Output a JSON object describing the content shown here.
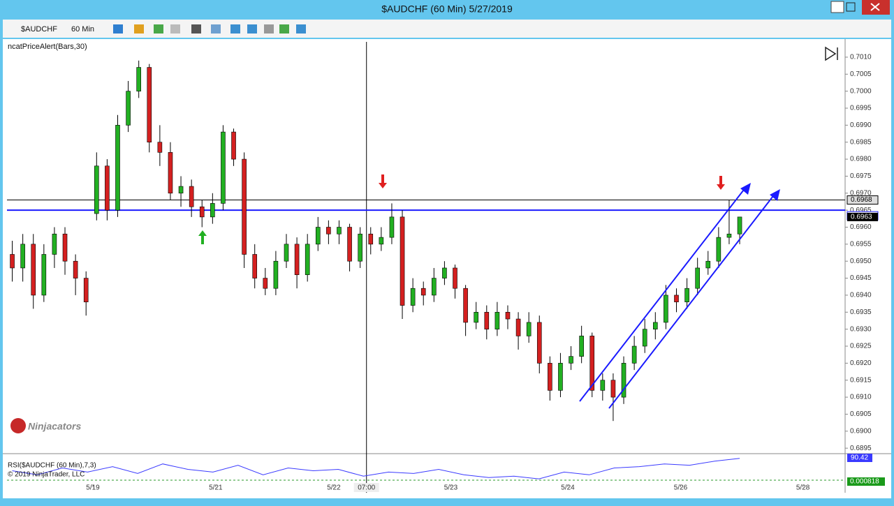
{
  "window": {
    "title": "$AUDCHF (60 Min)  5/27/2019"
  },
  "toolbar": {
    "instrument": "$AUDCHF",
    "interval": "60 Min"
  },
  "chart_data": {
    "type": "candlestick",
    "indicator_label": "ncatPriceAlert(Bars,30)",
    "logo": "Ninjacators",
    "up_color": "#22b022",
    "down_color": "#d42020",
    "ohlc": [
      [
        0.6952,
        0.6956,
        0.6944,
        0.6948
      ],
      [
        0.6948,
        0.6958,
        0.6944,
        0.6955
      ],
      [
        0.6955,
        0.6958,
        0.6936,
        0.694
      ],
      [
        0.694,
        0.6955,
        0.6938,
        0.6952
      ],
      [
        0.6952,
        0.696,
        0.6948,
        0.6958
      ],
      [
        0.6958,
        0.696,
        0.6946,
        0.695
      ],
      [
        0.695,
        0.6952,
        0.694,
        0.6945
      ],
      [
        0.6945,
        0.6947,
        0.6934,
        0.6938
      ],
      [
        0.6964,
        0.6982,
        0.6962,
        0.6978
      ],
      [
        0.6978,
        0.698,
        0.6962,
        0.6965
      ],
      [
        0.6965,
        0.6993,
        0.6963,
        0.699
      ],
      [
        0.699,
        0.7003,
        0.6988,
        0.7
      ],
      [
        0.7,
        0.7009,
        0.6998,
        0.7007
      ],
      [
        0.7007,
        0.7008,
        0.6982,
        0.6985
      ],
      [
        0.6985,
        0.699,
        0.6978,
        0.6982
      ],
      [
        0.6982,
        0.6985,
        0.6968,
        0.697
      ],
      [
        0.697,
        0.6975,
        0.6966,
        0.6972
      ],
      [
        0.6972,
        0.6974,
        0.6963,
        0.6966
      ],
      [
        0.6966,
        0.6968,
        0.696,
        0.6963
      ],
      [
        0.6963,
        0.697,
        0.6961,
        0.6967
      ],
      [
        0.6967,
        0.699,
        0.6965,
        0.6988
      ],
      [
        0.6988,
        0.6989,
        0.6978,
        0.698
      ],
      [
        0.698,
        0.6982,
        0.6948,
        0.6952
      ],
      [
        0.6952,
        0.6955,
        0.6942,
        0.6945
      ],
      [
        0.6945,
        0.6948,
        0.694,
        0.6942
      ],
      [
        0.6942,
        0.6953,
        0.694,
        0.695
      ],
      [
        0.695,
        0.6958,
        0.6948,
        0.6955
      ],
      [
        0.6955,
        0.6957,
        0.6942,
        0.6946
      ],
      [
        0.6946,
        0.6958,
        0.6944,
        0.6955
      ],
      [
        0.6955,
        0.6963,
        0.6953,
        0.696
      ],
      [
        0.696,
        0.6962,
        0.6955,
        0.6958
      ],
      [
        0.6958,
        0.6962,
        0.6955,
        0.696
      ],
      [
        0.696,
        0.6961,
        0.6947,
        0.695
      ],
      [
        0.695,
        0.696,
        0.6948,
        0.6958
      ],
      [
        0.6958,
        0.696,
        0.6952,
        0.6955
      ],
      [
        0.6955,
        0.696,
        0.6953,
        0.6957
      ],
      [
        0.6957,
        0.6967,
        0.6955,
        0.6963
      ],
      [
        0.6963,
        0.6965,
        0.6933,
        0.6937
      ],
      [
        0.6937,
        0.6945,
        0.6935,
        0.6942
      ],
      [
        0.6942,
        0.6944,
        0.6937,
        0.694
      ],
      [
        0.694,
        0.6948,
        0.6938,
        0.6945
      ],
      [
        0.6945,
        0.695,
        0.6943,
        0.6948
      ],
      [
        0.6948,
        0.6949,
        0.6939,
        0.6942
      ],
      [
        0.6942,
        0.6943,
        0.6928,
        0.6932
      ],
      [
        0.6932,
        0.6938,
        0.693,
        0.6935
      ],
      [
        0.6935,
        0.6937,
        0.6927,
        0.693
      ],
      [
        0.693,
        0.6938,
        0.6928,
        0.6935
      ],
      [
        0.6935,
        0.6937,
        0.693,
        0.6933
      ],
      [
        0.6933,
        0.6935,
        0.6924,
        0.6928
      ],
      [
        0.6928,
        0.6935,
        0.6926,
        0.6932
      ],
      [
        0.6932,
        0.6934,
        0.6917,
        0.692
      ],
      [
        0.692,
        0.6922,
        0.6909,
        0.6912
      ],
      [
        0.6912,
        0.6923,
        0.691,
        0.692
      ],
      [
        0.692,
        0.6925,
        0.6918,
        0.6922
      ],
      [
        0.6922,
        0.6931,
        0.692,
        0.6928
      ],
      [
        0.6928,
        0.6929,
        0.691,
        0.6912
      ],
      [
        0.6912,
        0.6917,
        0.6909,
        0.6915
      ],
      [
        0.6915,
        0.6917,
        0.6903,
        0.691
      ],
      [
        0.691,
        0.6922,
        0.6908,
        0.692
      ],
      [
        0.692,
        0.6928,
        0.6918,
        0.6925
      ],
      [
        0.6925,
        0.6933,
        0.6923,
        0.693
      ],
      [
        0.693,
        0.6935,
        0.6927,
        0.6932
      ],
      [
        0.6932,
        0.6943,
        0.693,
        0.694
      ],
      [
        0.694,
        0.6942,
        0.6935,
        0.6938
      ],
      [
        0.6938,
        0.6945,
        0.6936,
        0.6942
      ],
      [
        0.6942,
        0.6951,
        0.694,
        0.6948
      ],
      [
        0.6948,
        0.6953,
        0.6946,
        0.695
      ],
      [
        0.695,
        0.696,
        0.6948,
        0.6957
      ],
      [
        0.6957,
        0.6968,
        0.6955,
        0.6958
      ],
      [
        0.6958,
        0.6963,
        0.6955,
        0.6963
      ]
    ],
    "xlim": [
      -0.5,
      79
    ],
    "xticks": [
      {
        "value": 7.65,
        "label": "5/19"
      },
      {
        "value": 19.3,
        "label": "5/21"
      },
      {
        "value": 30.5,
        "label": "5/22"
      },
      {
        "value": 41.6,
        "label": "5/23"
      },
      {
        "value": 52.7,
        "label": "5/24"
      },
      {
        "value": 63.4,
        "label": "5/26"
      },
      {
        "value": 75,
        "label": "5/28"
      }
    ],
    "crosshair": {
      "value": 33.6,
      "label": "07:00"
    },
    "ylim": [
      0.68938,
      0.70145
    ],
    "yticks": [
      0.6895,
      {
        "value": 0.69,
        "label": "0.6900"
      },
      0.6905,
      {
        "value": 0.691,
        "label": "0.6910"
      },
      0.6915,
      {
        "value": 0.692,
        "label": "0.6920"
      },
      0.6925,
      {
        "value": 0.693,
        "label": "0.6930"
      },
      0.6935,
      {
        "value": 0.694,
        "label": "0.6940"
      },
      0.6945,
      {
        "value": 0.695,
        "label": "0.6950"
      },
      0.6955,
      {
        "value": 0.696,
        "label": "0.6960"
      },
      0.6965,
      {
        "value": 0.697,
        "label": "0.6970"
      },
      0.6975,
      {
        "value": 0.698,
        "label": "0.6980"
      },
      0.6985,
      {
        "value": 0.699,
        "label": "0.6990"
      },
      0.6995,
      {
        "value": 0.7,
        "label": "0.7000"
      },
      0.7005,
      {
        "value": 0.701,
        "label": "0.7010"
      }
    ],
    "hlines": [
      {
        "value": 0.6968,
        "color": "#000000"
      },
      {
        "value": 0.6965,
        "color": "#1a1aff"
      }
    ],
    "last_price": 0.6963,
    "rsi": {
      "label": "RSI($AUDCHF (60 Min),7,3)",
      "copyright": "© 2019 NinjaTrader, LLC",
      "color": "#3a3aff",
      "ylim": [
        0,
        100
      ],
      "values": [
        45,
        30,
        55,
        40,
        60,
        35,
        70,
        50,
        40,
        65,
        30,
        55,
        45,
        50,
        25,
        40,
        35,
        50,
        30,
        20,
        25,
        15,
        40,
        30,
        55,
        60,
        70,
        65,
        80,
        90.42
      ],
      "secondary_value": 0.000818
    }
  }
}
